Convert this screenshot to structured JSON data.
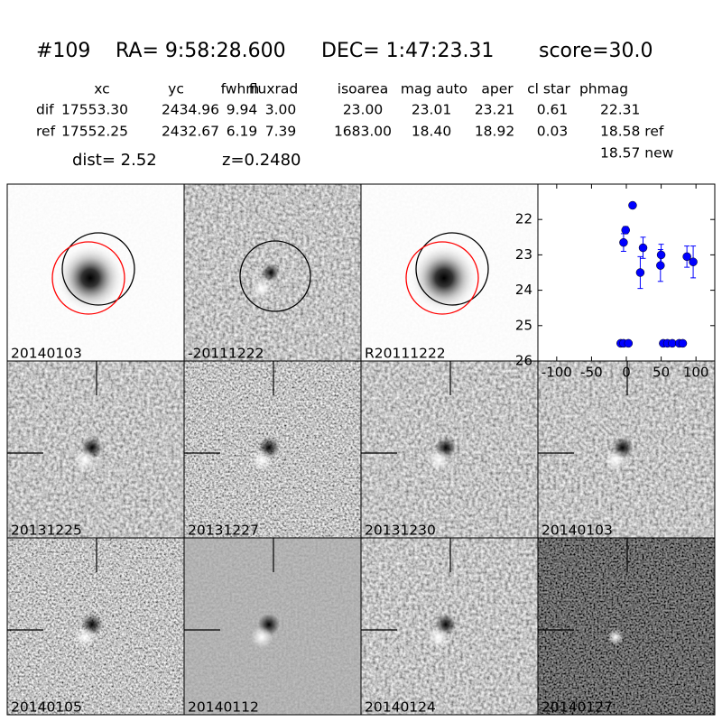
{
  "header": {
    "id": "#109",
    "ra": "RA= 9:58:28.600",
    "dec": "DEC= 1:47:23.31",
    "score": "score=30.0"
  },
  "table": {
    "columns": [
      "xc",
      "yc",
      "fwhm",
      "fluxrad",
      "isoarea",
      "mag auto",
      "aper",
      "cl star",
      "phmag"
    ],
    "rows": [
      {
        "label": "dif",
        "values": [
          "17553.30",
          "2434.96",
          "9.94",
          "3.00",
          "23.00",
          "23.01",
          "23.21",
          "0.61",
          "22.31"
        ]
      },
      {
        "label": "ref",
        "values": [
          "17552.25",
          "2432.67",
          "6.19",
          "7.39",
          "1683.00",
          "18.40",
          "18.92",
          "0.03",
          "18.58 ref"
        ]
      }
    ],
    "extra": "18.57 new"
  },
  "dist": "dist=  2.52",
  "z": "z=0.2480",
  "stamps": [
    "20140103",
    "-20111222",
    "R20111222",
    "20131225",
    "20131227",
    "20131230",
    "20140103",
    "20140105",
    "20140112",
    "20140124",
    "20140127"
  ],
  "highlight_color": "#ff0000",
  "chart_data": {
    "type": "scatter",
    "color": "#0000ff",
    "x": [
      -8,
      -4,
      3,
      -4,
      -1,
      9,
      20,
      24,
      49,
      50,
      53,
      59,
      66,
      76,
      81,
      87,
      96
    ],
    "values": [
      25.5,
      25.5,
      25.5,
      22.65,
      22.3,
      21.6,
      23.5,
      22.8,
      23.3,
      23.0,
      25.5,
      25.5,
      25.5,
      25.5,
      25.5,
      23.05,
      23.2
    ],
    "errors": [
      null,
      null,
      null,
      0.25,
      0.1,
      0.05,
      0.45,
      0.3,
      0.45,
      0.3,
      null,
      null,
      null,
      null,
      null,
      0.3,
      0.45
    ],
    "xlim": [
      -127,
      127
    ],
    "ylim": [
      26,
      21
    ],
    "xticks": [
      -100,
      -50,
      0,
      50,
      100
    ],
    "yticks": [
      22,
      23,
      24,
      25,
      26
    ]
  }
}
